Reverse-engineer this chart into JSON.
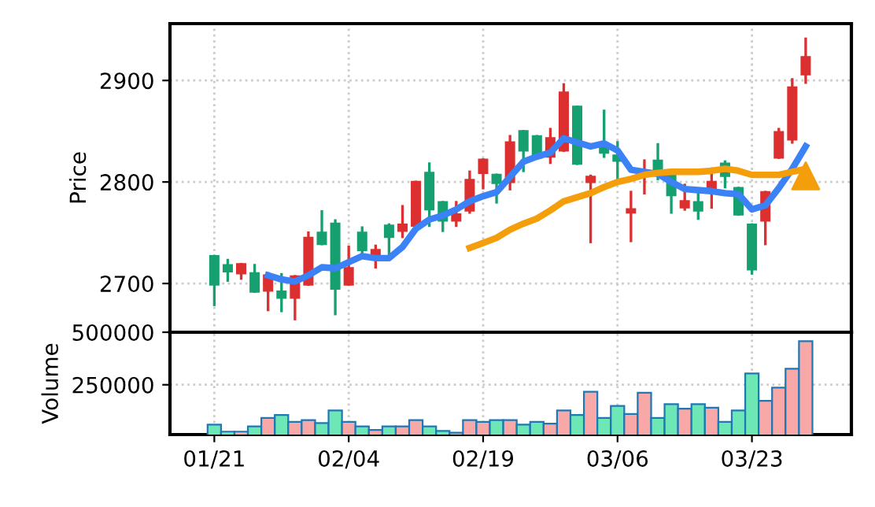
{
  "chart_data": [
    {
      "type": "candlestick",
      "ylabel": "Price",
      "tick_labels": "y",
      "grid": true,
      "categories": [
        null,
        null,
        null,
        null,
        null,
        null,
        null,
        null,
        null,
        null,
        null,
        null,
        null,
        null,
        null,
        null,
        null,
        null,
        null,
        null,
        null,
        null,
        null,
        null,
        null,
        null,
        null,
        null,
        null,
        null,
        null,
        null,
        null,
        null,
        null,
        null,
        null,
        null,
        null,
        null,
        null,
        null,
        null,
        null,
        null
      ],
      "ohlc": [
        [
          2727,
          2727,
          2679,
          2699
        ],
        [
          2718,
          2723,
          2703,
          2712
        ],
        [
          2710,
          2719,
          2705,
          2719
        ],
        [
          2710,
          2718,
          2692,
          2692
        ],
        [
          2693,
          2710,
          2674,
          2708
        ],
        [
          2692,
          2709,
          2673,
          2686
        ],
        [
          2686,
          2707,
          2665,
          2707
        ],
        [
          2699,
          2750,
          2699,
          2745
        ],
        [
          2750,
          2771,
          2739,
          2739
        ],
        [
          2759,
          2762,
          2670,
          2695
        ],
        [
          2699,
          2736,
          2699,
          2715
        ],
        [
          2750,
          2755,
          2726,
          2733
        ],
        [
          2726,
          2737,
          2716,
          2733
        ],
        [
          2757,
          2758,
          2728,
          2746
        ],
        [
          2752,
          2776,
          2746,
          2758
        ],
        [
          2757,
          2800,
          2757,
          2800
        ],
        [
          2809,
          2818,
          2757,
          2773
        ],
        [
          2780,
          2780,
          2752,
          2762
        ],
        [
          2762,
          2780,
          2757,
          2768
        ],
        [
          2772,
          2810,
          2770,
          2802
        ],
        [
          2809,
          2822,
          2794,
          2822
        ],
        [
          2807,
          2807,
          2780,
          2799
        ],
        [
          2800,
          2845,
          2793,
          2839
        ],
        [
          2850,
          2850,
          2811,
          2831
        ],
        [
          2845,
          2845,
          2824,
          2824
        ],
        [
          2825,
          2852,
          2819,
          2843
        ],
        [
          2831,
          2896,
          2831,
          2888
        ],
        [
          2874,
          2874,
          2818,
          2818
        ],
        [
          2800,
          2806,
          2741,
          2805
        ],
        [
          2836,
          2870,
          2825,
          2829
        ],
        [
          2826,
          2839,
          2803,
          2821
        ],
        [
          2770,
          2790,
          2742,
          2773
        ],
        [
          2808,
          2821,
          2789,
          2811
        ],
        [
          2821,
          2837,
          2803,
          2811
        ],
        [
          2806,
          2806,
          2770,
          2787
        ],
        [
          2775,
          2797,
          2773,
          2781
        ],
        [
          2780,
          2788,
          2764,
          2772
        ],
        [
          2793,
          2813,
          2775,
          2800
        ],
        [
          2818,
          2820,
          2795,
          2806
        ],
        [
          2794,
          2794,
          2768,
          2768
        ],
        [
          2758,
          2758,
          2710,
          2714
        ],
        [
          2762,
          2790,
          2739,
          2790
        ],
        [
          2824,
          2852,
          2824,
          2849
        ],
        [
          2842,
          2901,
          2839,
          2893
        ],
        [
          2906,
          2941,
          2898,
          2923
        ]
      ],
      "colors": [
        "#16a070",
        "#16a070",
        "#dc2f2f",
        "#16a070",
        "#dc2f2f",
        "#16a070",
        "#dc2f2f",
        "#dc2f2f",
        "#16a070",
        "#16a070",
        "#dc2f2f",
        "#16a070",
        "#dc2f2f",
        "#16a070",
        "#dc2f2f",
        "#dc2f2f",
        "#16a070",
        "#16a070",
        "#dc2f2f",
        "#dc2f2f",
        "#dc2f2f",
        "#16a070",
        "#dc2f2f",
        "#16a070",
        "#16a070",
        "#dc2f2f",
        "#dc2f2f",
        "#16a070",
        "#dc2f2f",
        "#16a070",
        "#16a070",
        "#dc2f2f",
        "#dc2f2f",
        "#16a070",
        "#16a070",
        "#dc2f2f",
        "#16a070",
        "#dc2f2f",
        "#16a070",
        "#16a070",
        "#16a070",
        "#dc2f2f",
        "#dc2f2f",
        "#dc2f2f",
        "#dc2f2f"
      ],
      "series": [
        {
          "type": "line",
          "color": "#3b82f6",
          "values": [
            null,
            null,
            null,
            null,
            2708,
            2704,
            2702,
            2708,
            2716,
            2715,
            2721,
            2727,
            2725,
            2725,
            2736,
            2754,
            2763,
            2767,
            2773,
            2781,
            2786,
            2790,
            2805,
            2820,
            2825,
            2829,
            2843,
            2839,
            2835,
            2838,
            2831,
            2812,
            2810,
            2808,
            2800,
            2793,
            2792,
            2791,
            2789,
            2788,
            2773,
            2777,
            2794,
            2813,
            2835
          ]
        },
        {
          "type": "line",
          "color": "#f59e0b",
          "values": [
            null,
            null,
            null,
            null,
            null,
            null,
            null,
            null,
            null,
            null,
            null,
            null,
            null,
            null,
            null,
            null,
            null,
            null,
            null,
            2735,
            2740,
            2745,
            2753,
            2759,
            2764,
            2772,
            2781,
            2785,
            2789,
            2795,
            2800,
            2803,
            2807,
            2809,
            2810,
            2810,
            2810,
            2811,
            2813,
            2811,
            2807,
            2807,
            2807,
            2810,
            2813
          ]
        },
        {
          "type": "scatter",
          "marker": "triangle",
          "color": "#f59e0b",
          "values": [
            null,
            null,
            null,
            null,
            null,
            null,
            null,
            null,
            null,
            null,
            null,
            null,
            null,
            null,
            null,
            null,
            null,
            null,
            null,
            null,
            null,
            null,
            null,
            null,
            null,
            null,
            null,
            null,
            null,
            null,
            null,
            null,
            null,
            null,
            null,
            null,
            null,
            null,
            null,
            null,
            null,
            null,
            null,
            null,
            2806
          ]
        }
      ],
      "ylim": [
        2652,
        2956
      ],
      "yticks": [
        2700,
        2800,
        2900
      ]
    },
    {
      "type": "bar",
      "ylabel": "Volume",
      "grid": true,
      "categories": [
        "01/21",
        null,
        null,
        null,
        null,
        null,
        null,
        null,
        null,
        null,
        "02/04",
        null,
        null,
        null,
        null,
        null,
        null,
        null,
        null,
        null,
        "02/19",
        null,
        null,
        null,
        null,
        null,
        null,
        null,
        null,
        null,
        "03/06",
        null,
        null,
        null,
        null,
        null,
        null,
        null,
        null,
        null,
        "03/23",
        null,
        null,
        null,
        null
      ],
      "values": [
        60000,
        27000,
        27000,
        52000,
        92000,
        106000,
        73000,
        82000,
        68000,
        128000,
        73000,
        52000,
        35000,
        52000,
        52000,
        82000,
        52000,
        30000,
        22000,
        82000,
        73000,
        82000,
        82000,
        60000,
        73000,
        65000,
        128000,
        106000,
        217000,
        92000,
        149000,
        111000,
        212000,
        92000,
        158000,
        136000,
        158000,
        141000,
        73000,
        128000,
        304000,
        174000,
        236000,
        326000,
        457000
      ],
      "colors": [
        "#6ee7b7",
        "#6ee7b7",
        "#f9a8a8",
        "#6ee7b7",
        "#f9a8a8",
        "#6ee7b7",
        "#f9a8a8",
        "#f9a8a8",
        "#6ee7b7",
        "#6ee7b7",
        "#f9a8a8",
        "#6ee7b7",
        "#f9a8a8",
        "#6ee7b7",
        "#f9a8a8",
        "#f9a8a8",
        "#6ee7b7",
        "#6ee7b7",
        "#f9a8a8",
        "#f9a8a8",
        "#f9a8a8",
        "#6ee7b7",
        "#f9a8a8",
        "#6ee7b7",
        "#6ee7b7",
        "#f9a8a8",
        "#f9a8a8",
        "#6ee7b7",
        "#f9a8a8",
        "#6ee7b7",
        "#6ee7b7",
        "#f9a8a8",
        "#f9a8a8",
        "#6ee7b7",
        "#6ee7b7",
        "#f9a8a8",
        "#6ee7b7",
        "#f9a8a8",
        "#6ee7b7",
        "#6ee7b7",
        "#6ee7b7",
        "#f9a8a8",
        "#f9a8a8",
        "#f9a8a8",
        "#f9a8a8"
      ],
      "ylim": [
        13000,
        500000
      ],
      "yticks": [
        250000,
        500000
      ]
    }
  ]
}
